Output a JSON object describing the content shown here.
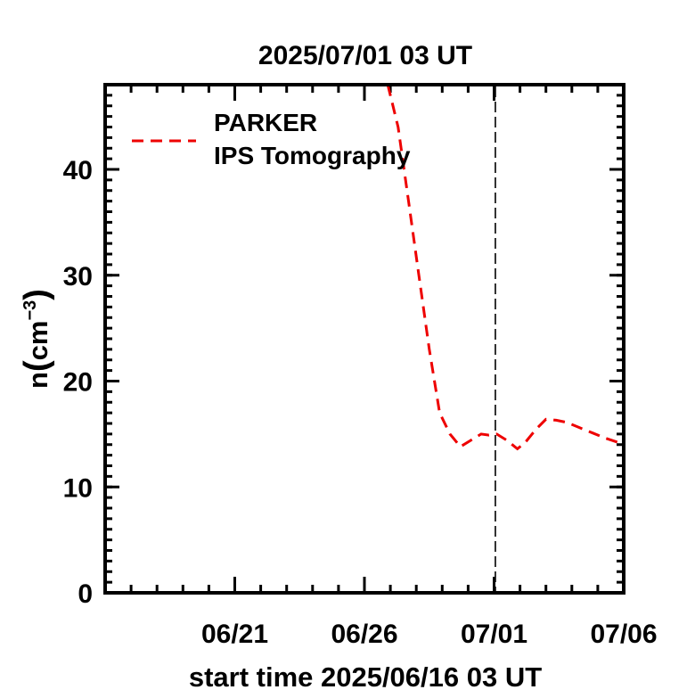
{
  "chart_data": {
    "type": "line",
    "title": "2025/07/01 03 UT",
    "xlabel": "start time 2025/06/16 03 UT",
    "ylabel_main": "n",
    "ylabel_paren_open": "(",
    "ylabel_unit": "cm",
    "ylabel_exp": "−3",
    "ylabel_paren_close": ")",
    "x_axis_unit": "days since start",
    "xlim": [
      0,
      20
    ],
    "ylim": [
      0,
      48
    ],
    "x_ticks": [
      {
        "x": 5,
        "label": "06/21"
      },
      {
        "x": 10,
        "label": "06/26"
      },
      {
        "x": 15,
        "label": "07/01"
      },
      {
        "x": 20,
        "label": "07/06"
      }
    ],
    "y_ticks": [
      {
        "y": 0,
        "label": "0"
      },
      {
        "y": 10,
        "label": "10"
      },
      {
        "y": 20,
        "label": "20"
      },
      {
        "y": 30,
        "label": "30"
      },
      {
        "y": 40,
        "label": "40"
      }
    ],
    "legend": {
      "placement": "top-left",
      "line1": "PARKER",
      "line2": "IPS Tomography"
    },
    "series": [
      {
        "name": "PARKER IPS Tomography",
        "color": "#ee0000",
        "style": "dashed",
        "x": [
          10.9,
          11.3,
          11.7,
          12.1,
          12.5,
          12.9,
          13.3,
          13.7,
          14.1,
          14.5,
          14.8,
          15.1,
          15.5,
          15.9,
          16.2,
          16.6,
          17.0,
          17.4,
          17.8,
          18.3,
          18.8,
          19.3,
          19.8
        ],
        "y": [
          48,
          44,
          37,
          30,
          23,
          17,
          15,
          13.8,
          14.4,
          15,
          14.9,
          15,
          14.4,
          13.6,
          14.2,
          15.4,
          16.4,
          16.3,
          16.1,
          15.6,
          15.1,
          14.6,
          14.2
        ]
      }
    ],
    "reference_line": {
      "x": 15.05,
      "style": "dashed",
      "color": "#000000"
    },
    "grid": false
  }
}
